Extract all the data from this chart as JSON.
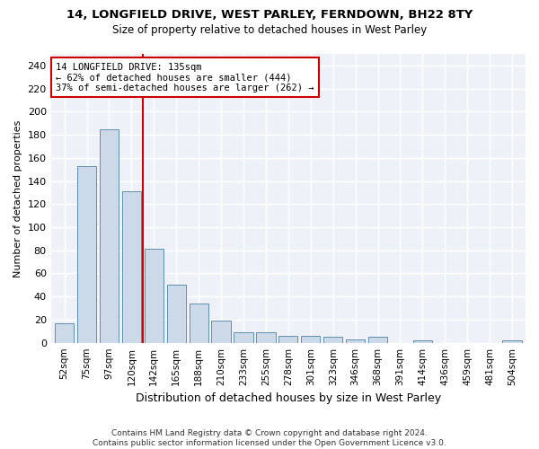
{
  "title1": "14, LONGFIELD DRIVE, WEST PARLEY, FERNDOWN, BH22 8TY",
  "title2": "Size of property relative to detached houses in West Parley",
  "xlabel": "Distribution of detached houses by size in West Parley",
  "ylabel": "Number of detached properties",
  "bar_color": "#ccd9e8",
  "bar_edge_color": "#6090b0",
  "vline_color": "#cc0000",
  "vline_x_index": 3.5,
  "categories": [
    "52sqm",
    "75sqm",
    "97sqm",
    "120sqm",
    "142sqm",
    "165sqm",
    "188sqm",
    "210sqm",
    "233sqm",
    "255sqm",
    "278sqm",
    "301sqm",
    "323sqm",
    "346sqm",
    "368sqm",
    "391sqm",
    "414sqm",
    "436sqm",
    "459sqm",
    "481sqm",
    "504sqm"
  ],
  "values": [
    17,
    153,
    185,
    131,
    81,
    50,
    34,
    19,
    9,
    9,
    6,
    6,
    5,
    3,
    5,
    0,
    2,
    0,
    0,
    0,
    2
  ],
  "ylim": [
    0,
    250
  ],
  "yticks": [
    0,
    20,
    40,
    60,
    80,
    100,
    120,
    140,
    160,
    180,
    200,
    220,
    240
  ],
  "annotation_line1": "14 LONGFIELD DRIVE: 135sqm",
  "annotation_line2": "← 62% of detached houses are smaller (444)",
  "annotation_line3": "37% of semi-detached houses are larger (262) →",
  "annotation_box_facecolor": "#ffffff",
  "annotation_box_edgecolor": "#cc0000",
  "footer": "Contains HM Land Registry data © Crown copyright and database right 2024.\nContains public sector information licensed under the Open Government Licence v3.0.",
  "background_color": "#ffffff",
  "plot_bg_color": "#eef2f8",
  "grid_color": "#ffffff",
  "title1_fontsize": 9.5,
  "title2_fontsize": 8.5,
  "xlabel_fontsize": 9,
  "ylabel_fontsize": 8,
  "tick_fontsize": 8,
  "xtick_fontsize": 7.5,
  "footer_fontsize": 6.5
}
